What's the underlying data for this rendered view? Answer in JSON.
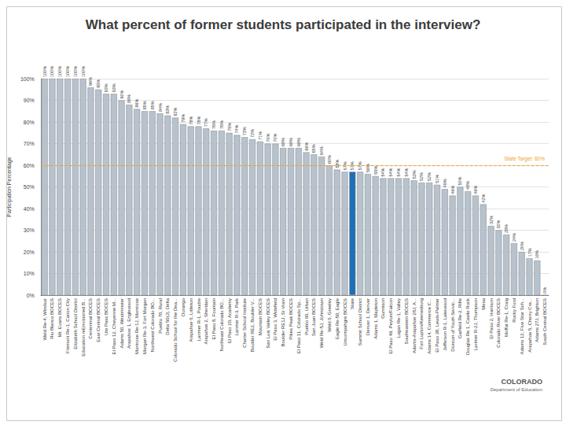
{
  "chart_data": {
    "type": "bar",
    "title": "What percent of former students participated in the interview?",
    "y_label": "Participation Percentage",
    "categories": [
      "Weld Re-4, Windsor",
      "Rio Blanco BOCES",
      "Mt. Evans BOCES",
      "Fremont Re-1, Canon City",
      "Elizabeth School District",
      "Education reEnvisioned B...",
      "Centennial BOCES",
      "East Central BOCES",
      "Ute Pass BOCES",
      "El Paso 12, Cheyenne M...",
      "Adams 50, Westminster",
      "Arapahoe 1, Englewood",
      "Montrose Re-1J, Montrose",
      "Morgan Re-3, Fort Morgan",
      "Northwest Colorado BO...",
      "Pueblo 70, Rural",
      "Delta 50(J), Delta",
      "Colorado School for the Dea...",
      "Durango",
      "Arapahoe 6, Littleton",
      "Larimer R-1, Poudre",
      "Arapahoe 2, Sheridan",
      "El Paso 8, Fountain",
      "Northeast Colorado BO...",
      "El Paso 20, Academy",
      "Larimer R-3, Park",
      "Charter School Institute",
      "Boulder RE2, Boulder V...",
      "Mountain BOCES",
      "San Luis Valley BOCES",
      "El Paso 3, Widefield",
      "Boulder RE1J, St Vrain",
      "Pikes Peak BOCES",
      "El Paso 11, Colorado Sp...",
      "Pueblo 60, Urban",
      "San Juan BOCES",
      "Weld Re-5J, Johnstown",
      "Weld 6, Greeley",
      "Eagle Re-50, Eagle",
      "Uncompahgre BOCES",
      "State",
      "Summit School District",
      "Denver 1, Denver",
      "Adams 1, Mapleton",
      "Gunnison",
      "El Paso 49, Peyton/Falcon",
      "Logan Re-1, Valley",
      "Southeastern BOCES",
      "Adams-Arapahoe 28J, A...",
      "Fort Lupton/Keenesburg",
      "Adams 14, Commerce C...",
      "El Paso 38, Lewis-Palmer",
      "Jefferson R-1, Lakewood",
      "Division of Youth Servic...",
      "Garfield Re-2, Rifle",
      "Douglas Re 1, Castle Rock",
      "Larimer R-2J, Thompson",
      "Mesa",
      "El Paso 2, Harrison",
      "Colorado River BOCES",
      "Moffat Re-1, Craig",
      "Rocky Ford",
      "Adams 12, Five Star Sch...",
      "Arapahoe 5, Cherry Cre...",
      "Adams 27J, Brighton",
      "South Central BOCES"
    ],
    "values": [
      100,
      100,
      100,
      100,
      100,
      100,
      96,
      95,
      93,
      93,
      90,
      88,
      86,
      85,
      85,
      84,
      83,
      82,
      79,
      78,
      78,
      77,
      76,
      76,
      75,
      74,
      73,
      72,
      71,
      70,
      70,
      68,
      68,
      68,
      66,
      65,
      64,
      60,
      58,
      57,
      57,
      57,
      56,
      55,
      54,
      54,
      54,
      54,
      53,
      52,
      52,
      51,
      49,
      46,
      50,
      48,
      46,
      42,
      32,
      30,
      28,
      24,
      20,
      17,
      16,
      0
    ],
    "value_labels": [
      "100%",
      "100%",
      "100%",
      "100%",
      "100%",
      "100%",
      "96%",
      "95%",
      "93%",
      "93%",
      "90%",
      "88%",
      "86%",
      "85%",
      "85%",
      "84%",
      "83%",
      "82%",
      "79%",
      "78%",
      "78%",
      "77%",
      "76%",
      "76%",
      "75%",
      "74%",
      "73%",
      "72%",
      "71%",
      "70%",
      "70%",
      "68%",
      "68%",
      "68%",
      "66%",
      "65%",
      "64%",
      "60%",
      "58%",
      "57%",
      "57%",
      "57%",
      "56%",
      "55%",
      "54%",
      "54%",
      "54%",
      "54%",
      "53%",
      "52%",
      "52%",
      "51%",
      "49%",
      "46%",
      "50%",
      "48%",
      "46%",
      "42%",
      "32%",
      "30%",
      "28%",
      "24%",
      "20%",
      "17%",
      "16%",
      "0%"
    ],
    "colors": [
      "#b8c2cc",
      "#b8c2cc",
      "#b8c2cc",
      "#b8c2cc",
      "#b8c2cc",
      "#b8c2cc",
      "#b8c2cc",
      "#b8c2cc",
      "#b8c2cc",
      "#b8c2cc",
      "#b8c2cc",
      "#b8c2cc",
      "#b8c2cc",
      "#b8c2cc",
      "#b8c2cc",
      "#b8c2cc",
      "#b8c2cc",
      "#b8c2cc",
      "#b8c2cc",
      "#b8c2cc",
      "#b8c2cc",
      "#b8c2cc",
      "#b8c2cc",
      "#b8c2cc",
      "#b8c2cc",
      "#b8c2cc",
      "#b8c2cc",
      "#b8c2cc",
      "#b8c2cc",
      "#b8c2cc",
      "#b8c2cc",
      "#b8c2cc",
      "#b8c2cc",
      "#b8c2cc",
      "#b8c2cc",
      "#b8c2cc",
      "#b8c2cc",
      "#b8c2cc",
      "#b8c2cc",
      "#b8c2cc",
      "#1f6fb5",
      "#b8c2cc",
      "#b8c2cc",
      "#b8c2cc",
      "#b8c2cc",
      "#b8c2cc",
      "#b8c2cc",
      "#b8c2cc",
      "#b8c2cc",
      "#b8c2cc",
      "#b8c2cc",
      "#b8c2cc",
      "#b8c2cc",
      "#b8c2cc",
      "#b8c2cc",
      "#b8c2cc",
      "#b8c2cc",
      "#b8c2cc",
      "#b8c2cc",
      "#b8c2cc",
      "#b8c2cc",
      "#b8c2cc",
      "#b8c2cc",
      "#b8c2cc",
      "#b8c2cc",
      "#b8c2cc"
    ],
    "ylim": [
      0,
      100
    ],
    "yticks": [
      {
        "value": 0,
        "label": "0%"
      },
      {
        "value": 10,
        "label": "10%"
      },
      {
        "value": 20,
        "label": "20%"
      },
      {
        "value": 30,
        "label": "30%"
      },
      {
        "value": 40,
        "label": "40%"
      },
      {
        "value": 50,
        "label": "50%"
      },
      {
        "value": 60,
        "label": "60%"
      },
      {
        "value": 70,
        "label": "70%"
      },
      {
        "value": 80,
        "label": "80%"
      },
      {
        "value": 90,
        "label": "90%"
      },
      {
        "value": 100,
        "label": "100%"
      }
    ],
    "grid": true,
    "data_labels": true,
    "target": {
      "value": 60,
      "label": "State Target: 60%",
      "color": "#f0a030"
    },
    "footer": [
      "COLORADO",
      "Department of Education"
    ]
  }
}
